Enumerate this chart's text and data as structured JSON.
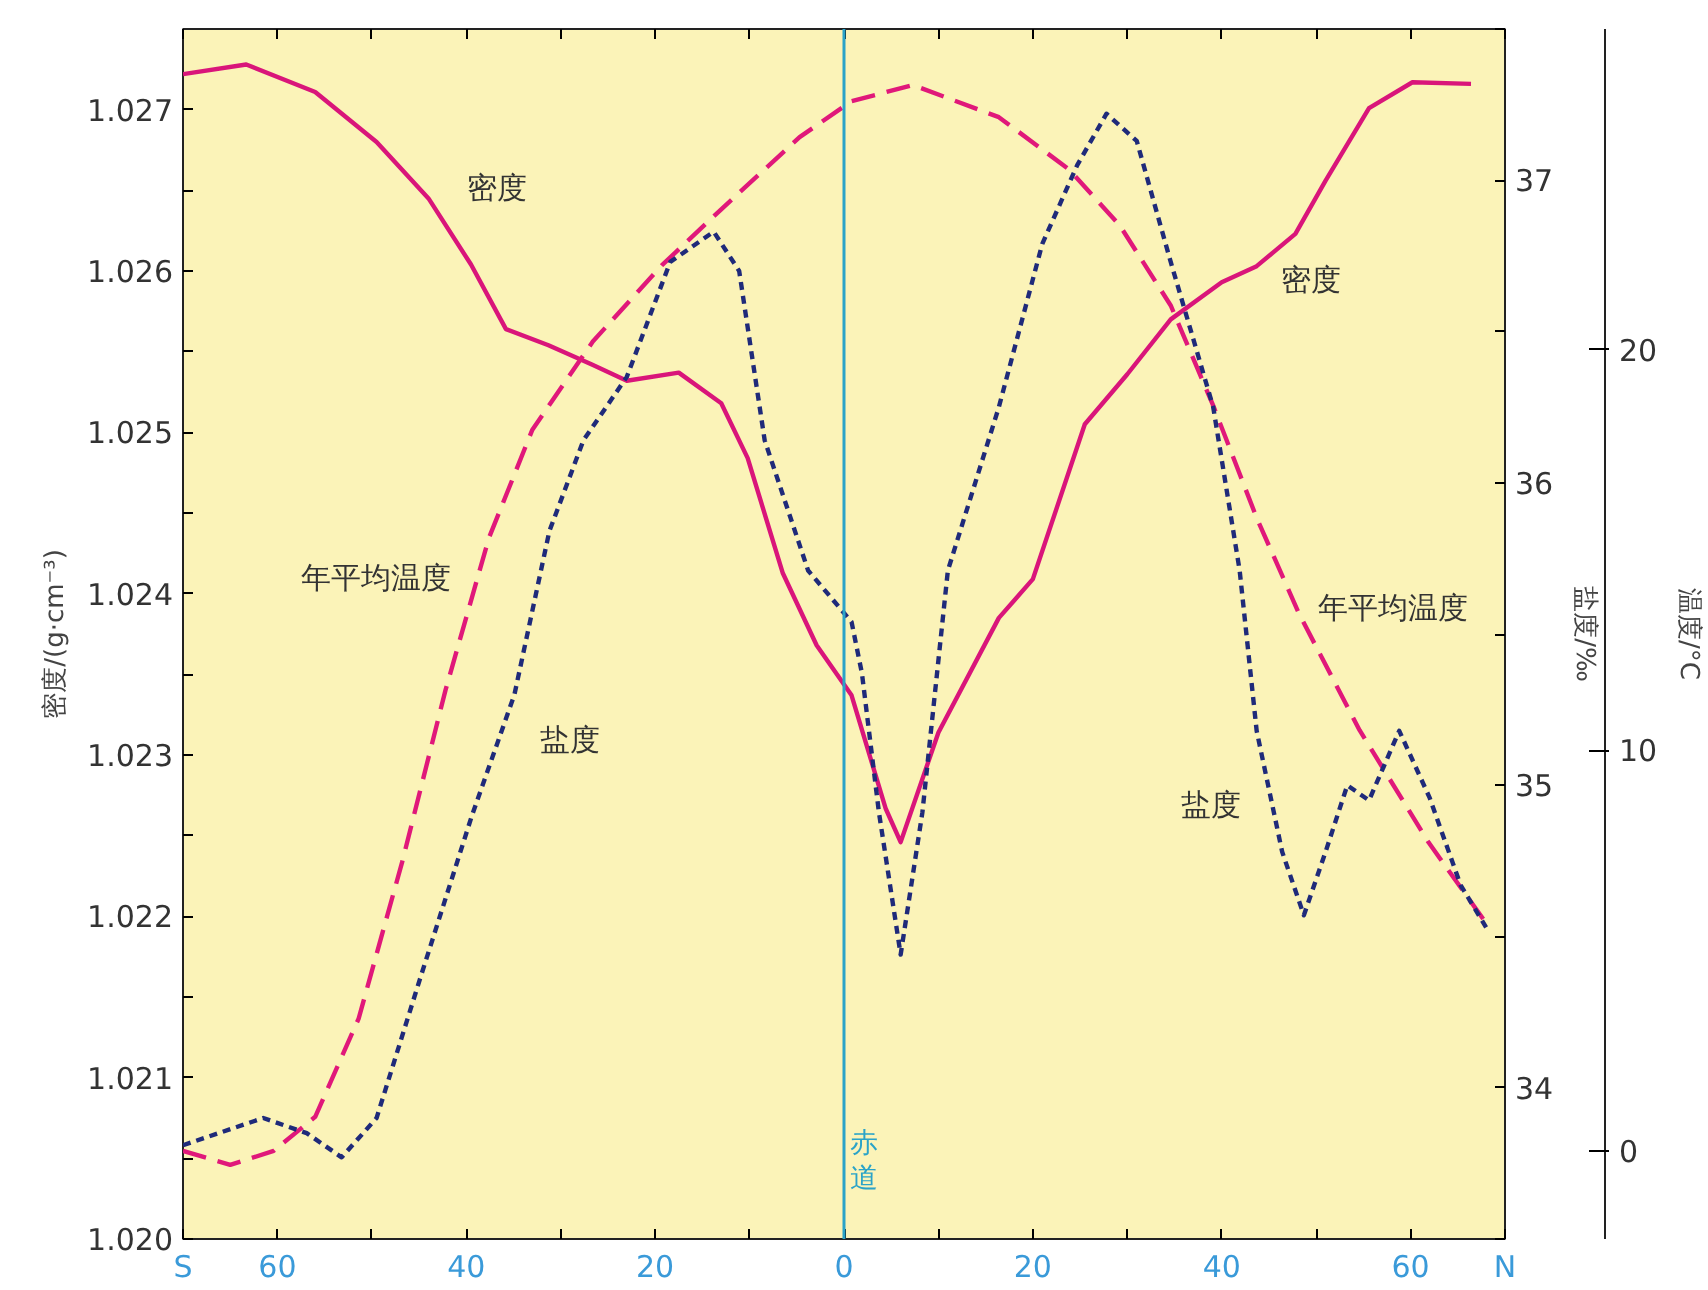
{
  "chart_data": {
    "type": "line",
    "ylabel": "密度/(g·cm⁻³)",
    "y2label": "盐度/‰",
    "y3label": "温度/°C",
    "xlim": [
      -70,
      70
    ],
    "xticks": [
      {
        "value": -70,
        "label": "S"
      },
      {
        "value": -60,
        "label": "60"
      },
      {
        "value": -50,
        "label": null
      },
      {
        "value": -40,
        "label": "40"
      },
      {
        "value": -30,
        "label": null
      },
      {
        "value": -20,
        "label": "20"
      },
      {
        "value": -10,
        "label": null
      },
      0,
      {
        "value": 10,
        "label": null
      },
      20,
      {
        "value": 30,
        "label": null
      },
      40,
      {
        "value": 50,
        "label": null
      },
      60,
      {
        "value": 70,
        "label": "N"
      }
    ],
    "ylim": [
      1.02,
      1.0275
    ],
    "yticks": [
      {
        "value": 1.02,
        "label": "1.020"
      },
      {
        "value": 1.0205,
        "label": null
      },
      {
        "value": 1.021,
        "label": "1.021"
      },
      {
        "value": 1.0215,
        "label": null
      },
      {
        "value": 1.022,
        "label": "1.022"
      },
      {
        "value": 1.0225,
        "label": null
      },
      {
        "value": 1.023,
        "label": "1.023"
      },
      {
        "value": 1.0235,
        "label": null
      },
      {
        "value": 1.024,
        "label": "1.024"
      },
      {
        "value": 1.0245,
        "label": null
      },
      {
        "value": 1.025,
        "label": "1.025"
      },
      {
        "value": 1.0255,
        "label": null
      },
      {
        "value": 1.026,
        "label": "1.026"
      },
      {
        "value": 1.0265,
        "label": null
      },
      {
        "value": 1.027,
        "label": "1.027"
      }
    ],
    "y2lim": [
      33.5,
      37.5
    ],
    "y2ticks": [
      {
        "value": 33.5,
        "label": null
      },
      34,
      {
        "value": 34.5,
        "label": null
      },
      35,
      {
        "value": 35.5,
        "label": null
      },
      36,
      {
        "value": 36.5,
        "label": null
      },
      37,
      {
        "value": 37.5,
        "label": null
      }
    ],
    "y3lim": [
      -2.2,
      28
    ],
    "y3ticks": [
      0,
      10,
      20
    ],
    "grid": false,
    "marker": "none",
    "series": [
      {
        "name": "密度",
        "color": "#d9157a",
        "line_style": "solid",
        "x": [
          -70,
          -63.3,
          -56,
          -49.5,
          -44,
          -39.5,
          -35.8,
          -31.3,
          -26.7,
          -23,
          -17.5,
          -13,
          -10.2,
          -6.5,
          -2.9,
          0.8,
          4.4,
          6,
          10,
          16.4,
          20,
          25.5,
          30,
          34.6,
          40,
          43.7,
          47.8,
          51,
          55.6,
          60.2,
          66.4
        ],
        "values": [
          1.02722,
          1.02728,
          1.02711,
          1.0268,
          1.02645,
          1.02604,
          1.02564,
          1.02554,
          1.02542,
          1.02532,
          1.02537,
          1.02518,
          1.02484,
          1.02413,
          1.02368,
          1.02337,
          1.02267,
          1.02246,
          1.02314,
          1.02385,
          1.02409,
          1.02505,
          1.02536,
          1.0257,
          1.02593,
          1.02603,
          1.02623,
          1.02656,
          1.02701,
          1.02717,
          1.02716
        ]
      },
      {
        "name": "年平均温度",
        "color": "#e0187a",
        "line_style": "dashed",
        "axis": "y3",
        "x": [
          -70,
          -65,
          -60.4,
          -56,
          -51.4,
          -46.8,
          -42.2,
          -37.6,
          -33,
          -26.6,
          -19.3,
          -13,
          -4.7,
          0.8,
          7.3,
          16.4,
          23.8,
          29.2,
          34.6,
          39.1,
          43.7,
          48.2,
          54.6,
          61.9,
          68.4
        ],
        "values": [
          0,
          -0.35,
          0,
          0.85,
          3.3,
          7.2,
          11.5,
          15.3,
          18,
          20.2,
          22.1,
          23.5,
          25.3,
          26.2,
          26.6,
          25.8,
          24.5,
          23.1,
          21.1,
          18.6,
          15.8,
          13.4,
          10.5,
          7.7,
          5.55
        ]
      },
      {
        "name": "盐度",
        "color": "#1f2a7a",
        "line_style": "dotted",
        "axis": "y2",
        "x": [
          -70,
          -61.5,
          -56.9,
          -53.2,
          -49.5,
          -44.9,
          -39.4,
          -34.9,
          -31.2,
          -27.6,
          -23,
          -18.4,
          -13.8,
          -11.1,
          -8.4,
          -3.8,
          0.8,
          1.9,
          3.7,
          6,
          8.3,
          11,
          16.4,
          21,
          24.7,
          27.8,
          31,
          34.6,
          39.1,
          41.9,
          43.7,
          46.4,
          48.7,
          51,
          53.3,
          55.6,
          58.8,
          62,
          65.3,
          68
        ],
        "values": [
          33.81,
          33.9,
          33.85,
          33.77,
          33.9,
          34.36,
          34.9,
          35.3,
          35.84,
          36.14,
          36.35,
          36.73,
          36.83,
          36.7,
          36.14,
          35.71,
          35.54,
          35.37,
          34.91,
          34.44,
          34.91,
          35.71,
          36.25,
          36.79,
          37.05,
          37.22,
          37.13,
          36.73,
          36.25,
          35.71,
          35.18,
          34.78,
          34.57,
          34.78,
          35.0,
          34.95,
          35.18,
          34.96,
          34.67,
          34.53
        ]
      }
    ],
    "ref_lines": [
      {
        "axis": "x",
        "value": 0,
        "label": "赤道",
        "color": "#2aa3c8"
      }
    ]
  }
}
